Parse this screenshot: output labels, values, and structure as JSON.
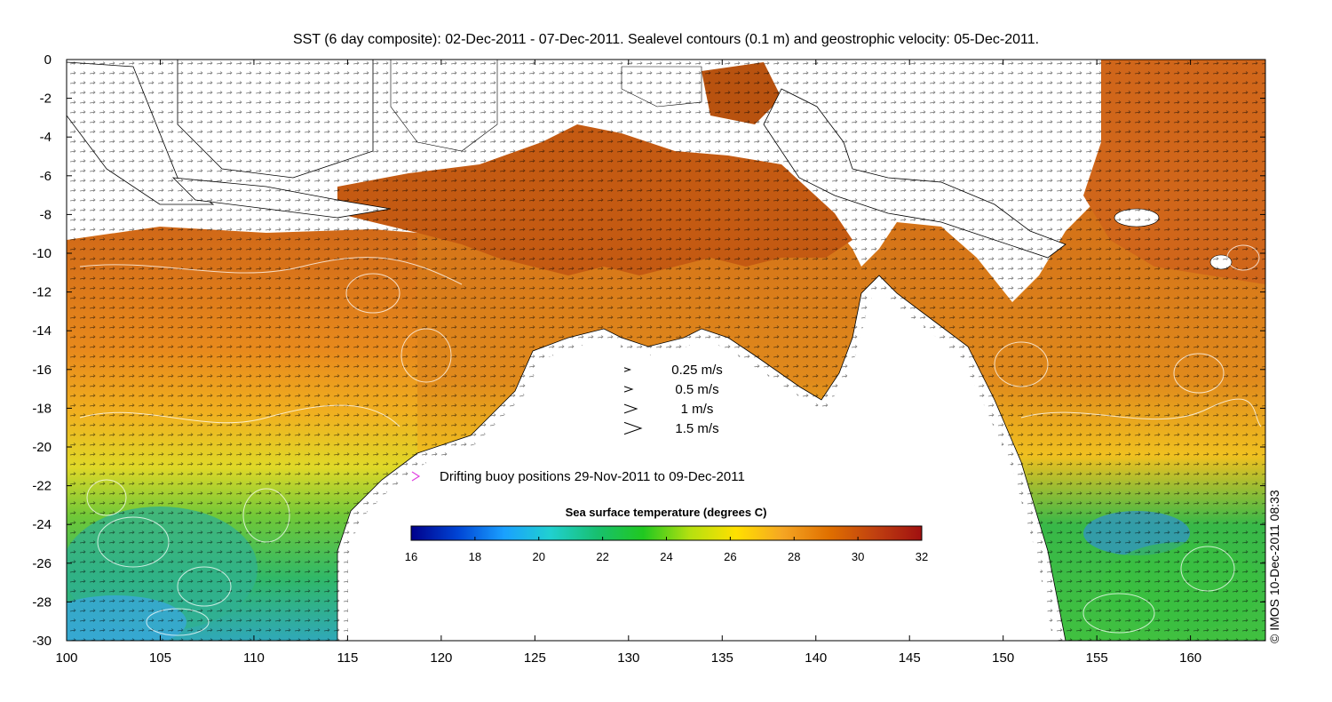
{
  "title": "SST (6 day composite): 02-Dec-2011 - 07-Dec-2011. Sealevel contours (0.1 m) and geostrophic velocity: 05-Dec-2011.",
  "watermark": "© IMOS 10-Dec-2011 08:33",
  "map": {
    "lon_range": [
      100,
      164
    ],
    "lat_range": [
      -30,
      0
    ],
    "x_ticks": [
      100,
      105,
      110,
      115,
      120,
      125,
      130,
      135,
      140,
      145,
      150,
      155,
      160
    ],
    "y_ticks": [
      0,
      -2,
      -4,
      -6,
      -8,
      -10,
      -12,
      -14,
      -16,
      -18,
      -20,
      -22,
      -24,
      -26,
      -28,
      -30
    ]
  },
  "velocity_legend": [
    {
      "label": "0.25 m/s",
      "speed": 0.25
    },
    {
      "label": "0.5 m/s",
      "speed": 0.5
    },
    {
      "label": "1 m/s",
      "speed": 1
    },
    {
      "label": "1.5 m/s",
      "speed": 1.5
    }
  ],
  "buoy_legend": {
    "label": "Drifting buoy positions 29-Nov-2011 to 09-Dec-2011",
    "color": "#e040e0"
  },
  "colorbar": {
    "title": "Sea surface temperature (degrees C)",
    "min": 16,
    "max": 32,
    "ticks": [
      16,
      18,
      20,
      22,
      24,
      26,
      28,
      30,
      32
    ],
    "colors": [
      "#00008b",
      "#0044d4",
      "#1aa0ff",
      "#20d0d0",
      "#18c070",
      "#20c820",
      "#b4e010",
      "#ffe000",
      "#f5a623",
      "#e07000",
      "#c04010",
      "#a01010"
    ]
  },
  "sst_colors": {
    "warm": "#e08018",
    "hot": "#c05010",
    "orange": "#f0a020",
    "yellow": "#f0e020",
    "green": "#38c040",
    "teal": "#28c0a0",
    "cyan": "#30b0e0"
  }
}
